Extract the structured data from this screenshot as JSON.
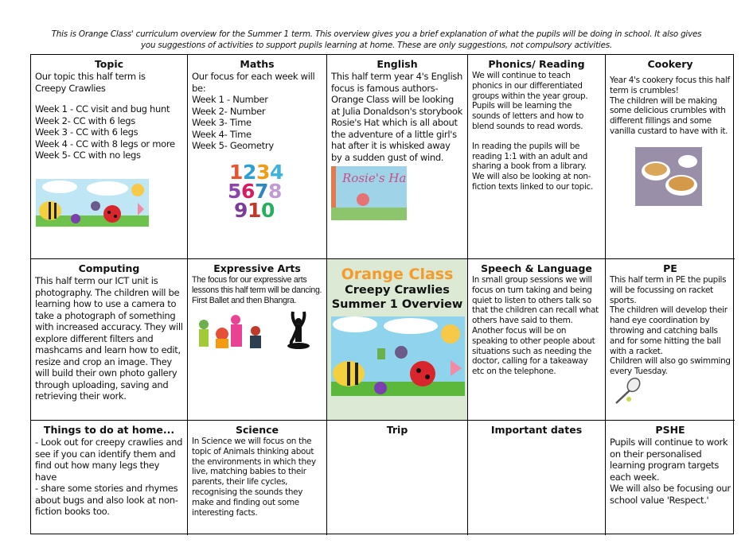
{
  "intro": "This is Orange Class' curriculum overview for the Summer 1 term. This overview gives you a brief explanation of what the pupils will be doing in school. It also gives you suggestions of activities to support pupils learning at home. These are only suggestions, not compulsory activities.",
  "topic": {
    "title": "Topic",
    "lines": [
      "Our topic this half term is",
      "Creepy Crawlies"
    ],
    "weeks": [
      "Week 1 - CC visit and bug hunt",
      "Week 2- CC with 6 legs",
      "Week 3 - CC with 6 legs",
      "Week 4 - CC with 8 legs or more",
      "Week 5- CC with no legs"
    ]
  },
  "maths": {
    "title": "Maths",
    "lines": [
      "Our focus for each week will be:",
      "Week 1 - Number",
      "Week 2- Number",
      "Week 3- Time",
      "Week 4- Time",
      "Week 5- Geometry"
    ],
    "numbers_image": "1234 5678 910"
  },
  "english": {
    "title": "English",
    "text": "This half term year 4's English focus is famous authors- Orange Class will be looking at Julia Donaldson's storybook Rosie's Hat which is all about the adventure of a little girl's hat after it is whisked away by a sudden gust of wind.",
    "book_cover": "Rosie's Hat"
  },
  "phonics": {
    "title": "Phonics/ Reading",
    "p1": "We will continue to teach phonics in our differentiated groups within the year group. Pupils will be learning the sounds of letters and how to blend sounds to read words.",
    "p2": "In reading the pupils will be reading 1:1 with an adult and sharing a book from a library. We will also be looking at non-fiction texts linked to our topic."
  },
  "cookery": {
    "title": "Cookery",
    "p1": "Year 4's cookery focus this half term is crumbles!",
    "p2": "The children will be making some delicious crumbles with different fillings and some vanilla custard to have with it."
  },
  "computing": {
    "title": "Computing",
    "text": "This half term our ICT unit is photography. The children will be learning how to use a camera to take a photograph of something with increased accuracy. They will explore different filters and mashcams and learn how to edit, resize and crop an image. They will build their own photo gallery through uploading, saving and retrieving their work."
  },
  "arts": {
    "title": "Expressive Arts",
    "text": "The focus for our expressive arts lessons this half term will be dancing. First Ballet and then Bhangra."
  },
  "center": {
    "class": "Orange Class",
    "theme": "Creepy Crawlies",
    "term": "Summer 1 Overview",
    "accent": "#f59b2b",
    "bg": "#dbe9d5"
  },
  "speech": {
    "title": "Speech & Language",
    "text": "In small group sessions we will focus on turn taking and being quiet to listen to others talk so that the children can recall what others have said to them. Another focus will be on speaking to other people about situations such as needing the doctor, calling for a takeaway etc on the telephone."
  },
  "pe": {
    "title": "PE",
    "p1": "This half term in PE the pupils will be focussing on racket sports.",
    "p2": "The children will develop their hand eye coordination by throwing and catching balls and for some hitting the ball with a racket.",
    "p3": "Children will also go swimming every Tuesday."
  },
  "home": {
    "title": "Things to do at home...",
    "p1": "- Look out for creepy crawlies and see if you can identify them and find out how many legs they have",
    "p2": "- share some stories and rhymes about bugs and also look at non-fiction books too."
  },
  "science": {
    "title": "Science",
    "text": "In Science we will focus on the topic of Animals thinking about the environments in which they live, matching babies to their parents, their life cycles, recognising the sounds they make and  finding out some interesting facts."
  },
  "trip": {
    "title": "Trip"
  },
  "dates": {
    "title": "Important dates"
  },
  "pshe": {
    "title": "PSHE",
    "p1": "Pupils will continue to work on their personalised learning program targets each week.",
    "p2": "We will also be focusing our school value 'Respect.'"
  }
}
